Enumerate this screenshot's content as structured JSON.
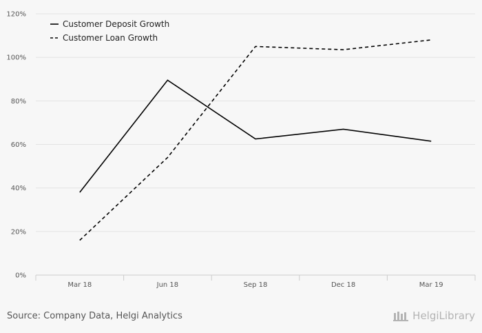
{
  "chart_data": {
    "type": "line",
    "categories": [
      "Mar 18",
      "Jun 18",
      "Sep 18",
      "Dec 18",
      "Mar 19"
    ],
    "series": [
      {
        "name": "Customer Deposit Growth",
        "values": [
          38,
          89.5,
          62.5,
          67,
          61.5
        ],
        "style": "solid",
        "color": "#000000"
      },
      {
        "name": "Customer Loan Growth",
        "values": [
          16,
          54,
          105,
          103.5,
          108
        ],
        "style": "dashed",
        "color": "#000000"
      }
    ],
    "ylim": [
      0,
      120
    ],
    "yticks": [
      0,
      20,
      40,
      60,
      80,
      100,
      120
    ],
    "ytick_format": "percent",
    "grid": true,
    "legend_position": "top-left",
    "title": "",
    "xlabel": "",
    "ylabel": ""
  },
  "footer": {
    "source": "Source: Company Data, Helgi Analytics",
    "brand": "HelgiLibrary"
  },
  "colors": {
    "background": "#f7f7f7",
    "grid": "#e3e3e3",
    "axis": "#cccccc"
  }
}
